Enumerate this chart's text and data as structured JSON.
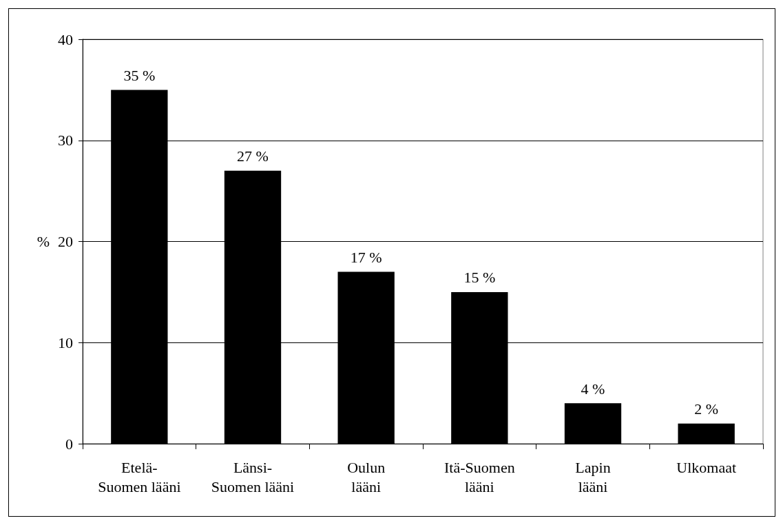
{
  "chart_data": {
    "type": "bar",
    "ylabel": "%",
    "categories": [
      "Etelä-\nSuomen lääni",
      "Länsi-\nSuomen lääni",
      "Oulun\nlääni",
      "Itä-Suomen\nlääni",
      "Lapin\nlääni",
      "Ulkomaat"
    ],
    "values": [
      35,
      27,
      17,
      15,
      4,
      2
    ],
    "value_labels": [
      "35 %",
      "27 %",
      "17 %",
      "15 %",
      "4 %",
      "2 %"
    ],
    "color": "#000000",
    "ylim": [
      0,
      40
    ],
    "yticks": [
      0,
      10,
      20,
      30,
      40
    ],
    "grid": "y"
  }
}
